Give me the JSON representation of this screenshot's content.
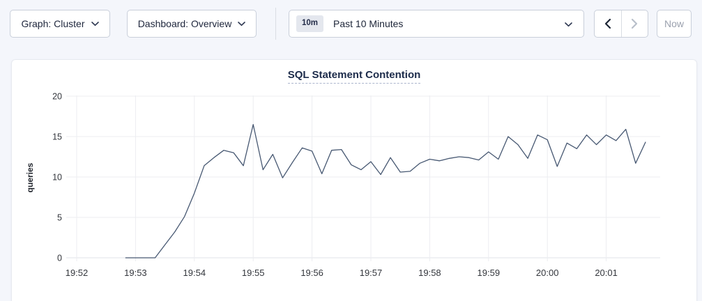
{
  "toolbar": {
    "graph_dropdown_label": "Graph: Cluster",
    "dashboard_dropdown_label": "Dashboard: Overview",
    "time_badge": "10m",
    "time_label": "Past 10 Minutes",
    "now_label": "Now"
  },
  "chart_data": {
    "type": "line",
    "title": "SQL Statement Contention",
    "ylabel": "queries",
    "ylim": [
      0,
      20
    ],
    "yticks": [
      0,
      5,
      10,
      15,
      20
    ],
    "x_tick_labels": [
      "19:52",
      "19:53",
      "19:54",
      "19:55",
      "19:56",
      "19:57",
      "19:58",
      "19:59",
      "20:00",
      "20:01"
    ],
    "grid": true,
    "legend": "none",
    "series": [
      {
        "name": "queries",
        "color": "#475872",
        "times": [
          "19:52:50",
          "19:53:00",
          "19:53:10",
          "19:53:20",
          "19:53:30",
          "19:53:40",
          "19:53:50",
          "19:54:00",
          "19:54:10",
          "19:54:20",
          "19:54:30",
          "19:54:40",
          "19:54:50",
          "19:55:00",
          "19:55:10",
          "19:55:20",
          "19:55:30",
          "19:55:40",
          "19:55:50",
          "19:56:00",
          "19:56:10",
          "19:56:20",
          "19:56:30",
          "19:56:40",
          "19:56:50",
          "19:57:00",
          "19:57:10",
          "19:57:20",
          "19:57:30",
          "19:57:40",
          "19:57:50",
          "19:58:00",
          "19:58:10",
          "19:58:20",
          "19:58:30",
          "19:58:40",
          "19:58:50",
          "19:59:00",
          "19:59:10",
          "19:59:20",
          "19:59:30",
          "19:59:40",
          "19:59:50",
          "20:00:00",
          "20:00:10",
          "20:00:20",
          "20:00:30",
          "20:00:40",
          "20:00:50",
          "20:01:00",
          "20:01:10",
          "20:01:20",
          "20:01:30",
          "20:01:40"
        ],
        "values": [
          0,
          0,
          0,
          0,
          1.6,
          3.2,
          5.1,
          8.0,
          11.4,
          12.4,
          13.3,
          13.0,
          11.4,
          16.5,
          10.9,
          12.8,
          9.9,
          11.8,
          13.6,
          13.2,
          10.4,
          13.3,
          13.4,
          11.5,
          10.9,
          11.9,
          10.3,
          12.4,
          10.6,
          10.7,
          11.7,
          12.2,
          12.0,
          12.3,
          12.5,
          12.4,
          12.1,
          13.1,
          12.2,
          15.0,
          14.0,
          12.3,
          15.2,
          14.6,
          11.3,
          14.2,
          13.5,
          15.2,
          14.0,
          15.2,
          14.5,
          15.9,
          11.7,
          14.3
        ]
      }
    ]
  },
  "colors": {
    "page_bg": "#f4f6fb",
    "card_bg": "#ffffff",
    "card_border": "#e7eaf0",
    "control_border": "#c9cfda",
    "text_primary": "#20283e",
    "title_color": "#1c2b4a",
    "grid_color": "#ecedf1",
    "zero_line_color": "#e1e3e8",
    "tick_text": "#33363c",
    "disabled_text": "#9ba1ae",
    "badge_bg": "#e4e7ee",
    "line_color": "#475872"
  }
}
